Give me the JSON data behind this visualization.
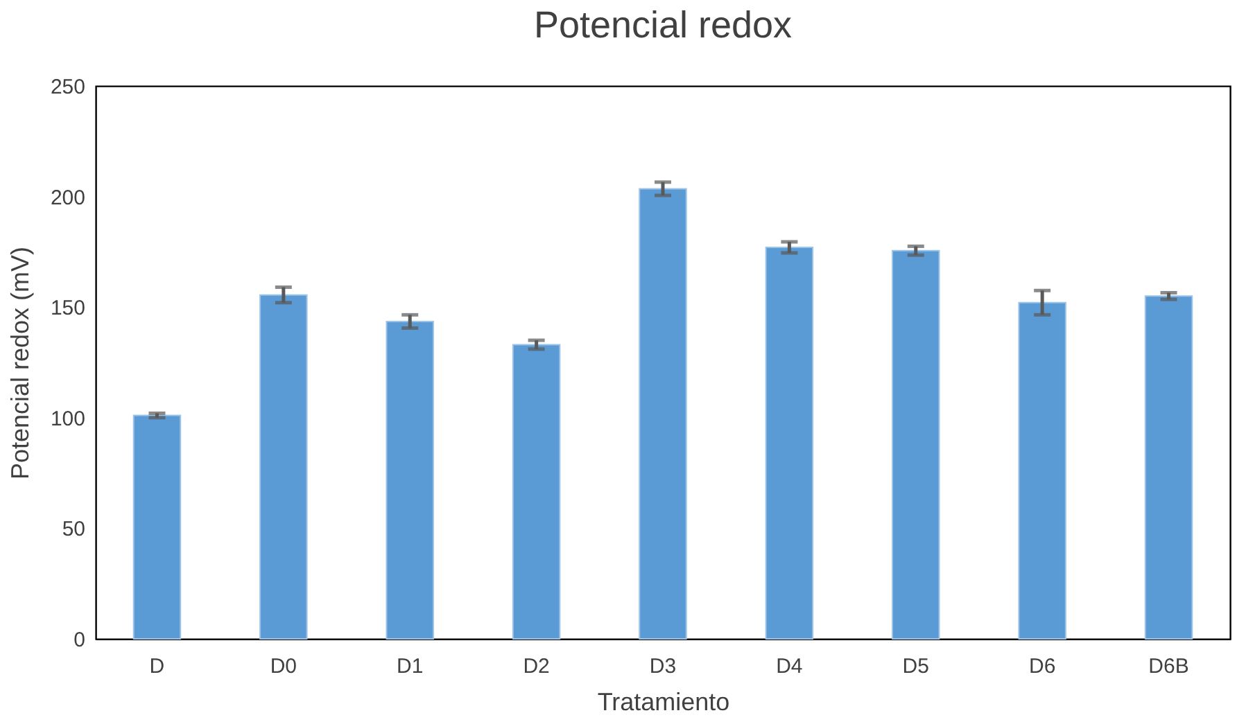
{
  "chart_data": {
    "type": "bar",
    "title": "Potencial redox",
    "xlabel": "Tratamiento",
    "ylabel": "Potencial redox (mV)",
    "categories": [
      "D",
      "D0",
      "D1",
      "D2",
      "D3",
      "D4",
      "D5",
      "D6",
      "D6B"
    ],
    "values": [
      101,
      155.5,
      143.5,
      133,
      203.5,
      177,
      175.5,
      152,
      155
    ],
    "errors": [
      1,
      3.5,
      3,
      2,
      3,
      2.5,
      2,
      5.5,
      1.5
    ],
    "color": "#5b9bd5",
    "ylim": [
      0,
      250
    ],
    "yticks": [
      0,
      50,
      100,
      150,
      200,
      250
    ],
    "grid": false
  }
}
